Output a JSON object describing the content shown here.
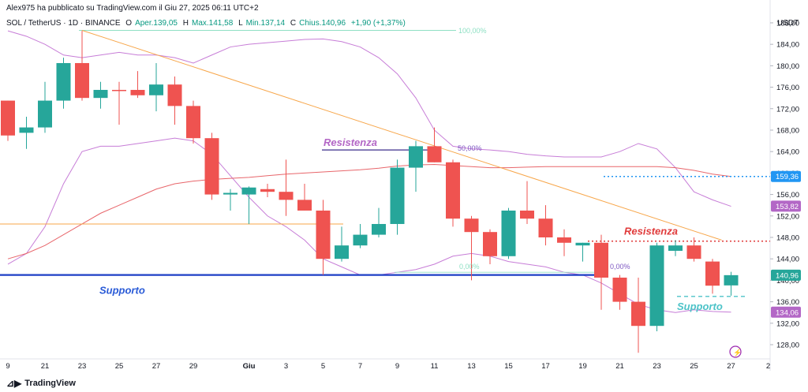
{
  "publisher_line": "Alex975 ha pubblicato su TradingView.com il Giu 27, 2025 06:11 UTC+2",
  "symbol_line": "SOL / TetherUS · 1D · BINANCE",
  "ohlc": {
    "open_label": "O",
    "open_text": "Aper.139,05",
    "high_label": "H",
    "high_text": "Max.141,58",
    "low_label": "L",
    "low_text": "Min.137,14",
    "close_label": "C",
    "close_text": "Chius.140,96",
    "change_text": "+1,90 (+1,37%)"
  },
  "brand": "TradingView",
  "currency": "USDT",
  "colors": {
    "up": "#26a69a",
    "down": "#ef5350",
    "bollinger": "#c77dd7",
    "ma": "#e8666b",
    "trendline": "#f7a64a",
    "support": "#1e3fc5",
    "resistance_dotted": "#e03a3a",
    "fib": "#8fe0c4",
    "blue_dotted": "#2196f3",
    "purple_label": "#b367c6",
    "teal_label": "#4dc3c8"
  },
  "chart_data": {
    "type": "candlestick",
    "y_ticks": [
      128,
      132,
      136,
      140,
      144,
      148,
      152,
      156,
      160,
      164,
      168,
      172,
      176,
      180,
      184,
      188
    ],
    "ylim": [
      125.5,
      190.2
    ],
    "x_tick_labels": [
      {
        "i": 0,
        "label": "9"
      },
      {
        "i": 2,
        "label": "21"
      },
      {
        "i": 4,
        "label": "23"
      },
      {
        "i": 6,
        "label": "25"
      },
      {
        "i": 8,
        "label": "27"
      },
      {
        "i": 10,
        "label": "29"
      },
      {
        "i": 13,
        "label": "Giu"
      },
      {
        "i": 15,
        "label": "3"
      },
      {
        "i": 17,
        "label": "5"
      },
      {
        "i": 19,
        "label": "7"
      },
      {
        "i": 21,
        "label": "9"
      },
      {
        "i": 23,
        "label": "11"
      },
      {
        "i": 25,
        "label": "13"
      },
      {
        "i": 27,
        "label": "15"
      },
      {
        "i": 29,
        "label": "17"
      },
      {
        "i": 31,
        "label": "19"
      },
      {
        "i": 33,
        "label": "21"
      },
      {
        "i": 35,
        "label": "23"
      },
      {
        "i": 37,
        "label": "25"
      },
      {
        "i": 39,
        "label": "27"
      },
      {
        "i": 41,
        "label": "2"
      }
    ],
    "candles": [
      {
        "o": 173.5,
        "h": 173.5,
        "l": 166.0,
        "c": 167.0
      },
      {
        "o": 167.5,
        "h": 170.5,
        "l": 164.5,
        "c": 168.5
      },
      {
        "o": 168.5,
        "h": 177.0,
        "l": 167.5,
        "c": 173.5
      },
      {
        "o": 173.5,
        "h": 181.5,
        "l": 172.0,
        "c": 180.5
      },
      {
        "o": 180.5,
        "h": 186.5,
        "l": 173.5,
        "c": 174.0
      },
      {
        "o": 174.0,
        "h": 177.0,
        "l": 172.0,
        "c": 175.5
      },
      {
        "o": 175.5,
        "h": 177.0,
        "l": 169.0,
        "c": 175.3
      },
      {
        "o": 175.5,
        "h": 179.0,
        "l": 174.0,
        "c": 174.5
      },
      {
        "o": 174.5,
        "h": 180.5,
        "l": 171.5,
        "c": 176.5
      },
      {
        "o": 176.5,
        "h": 178.0,
        "l": 169.0,
        "c": 172.5
      },
      {
        "o": 172.5,
        "h": 173.5,
        "l": 165.5,
        "c": 166.5
      },
      {
        "o": 166.5,
        "h": 167.5,
        "l": 155.0,
        "c": 156.0
      },
      {
        "o": 156.0,
        "h": 157.0,
        "l": 153.0,
        "c": 156.3
      },
      {
        "o": 156.0,
        "h": 157.5,
        "l": 150.5,
        "c": 157.3
      },
      {
        "o": 157.0,
        "h": 158.0,
        "l": 155.5,
        "c": 156.5
      },
      {
        "o": 156.5,
        "h": 162.5,
        "l": 152.0,
        "c": 155.0
      },
      {
        "o": 155.0,
        "h": 158.0,
        "l": 153.0,
        "c": 153.0
      },
      {
        "o": 153.0,
        "h": 155.0,
        "l": 141.0,
        "c": 144.0
      },
      {
        "o": 144.0,
        "h": 150.0,
        "l": 143.5,
        "c": 146.5
      },
      {
        "o": 146.5,
        "h": 150.5,
        "l": 146.0,
        "c": 148.5
      },
      {
        "o": 148.5,
        "h": 153.5,
        "l": 148.0,
        "c": 150.5
      },
      {
        "o": 150.5,
        "h": 162.5,
        "l": 148.5,
        "c": 161.0
      },
      {
        "o": 161.0,
        "h": 166.0,
        "l": 156.5,
        "c": 165.0
      },
      {
        "o": 165.0,
        "h": 168.5,
        "l": 162.0,
        "c": 162.0
      },
      {
        "o": 162.0,
        "h": 162.5,
        "l": 150.0,
        "c": 151.5
      },
      {
        "o": 151.5,
        "h": 152.0,
        "l": 140.0,
        "c": 149.0
      },
      {
        "o": 149.0,
        "h": 149.5,
        "l": 143.0,
        "c": 144.5
      },
      {
        "o": 144.5,
        "h": 153.5,
        "l": 144.0,
        "c": 153.0
      },
      {
        "o": 153.0,
        "h": 158.5,
        "l": 150.5,
        "c": 151.5
      },
      {
        "o": 151.5,
        "h": 154.0,
        "l": 146.5,
        "c": 148.0
      },
      {
        "o": 148.0,
        "h": 149.5,
        "l": 144.5,
        "c": 147.0
      },
      {
        "o": 146.5,
        "h": 147.0,
        "l": 143.5,
        "c": 147.0
      },
      {
        "o": 147.0,
        "h": 148.5,
        "l": 134.5,
        "c": 140.5
      },
      {
        "o": 140.5,
        "h": 141.0,
        "l": 134.5,
        "c": 136.0
      },
      {
        "o": 136.0,
        "h": 140.5,
        "l": 126.5,
        "c": 131.5
      },
      {
        "o": 131.5,
        "h": 147.0,
        "l": 130.5,
        "c": 146.5
      },
      {
        "o": 145.5,
        "h": 147.5,
        "l": 144.5,
        "c": 146.5
      },
      {
        "o": 146.5,
        "h": 148.0,
        "l": 143.5,
        "c": 144.0
      },
      {
        "o": 143.5,
        "h": 144.0,
        "l": 137.5,
        "c": 139.0
      },
      {
        "o": 139.05,
        "h": 141.58,
        "l": 137.14,
        "c": 140.96
      }
    ],
    "bollinger_upper": [
      186.5,
      185.5,
      184.0,
      182.0,
      181.5,
      182.0,
      182.5,
      182.0,
      182.0,
      181.5,
      180.5,
      182.0,
      183.5,
      184.0,
      184.3,
      184.6,
      184.9,
      185.0,
      184.5,
      183.5,
      181.5,
      178.5,
      174.0,
      168.0,
      165.0,
      164.5,
      164.3,
      164.0,
      163.5,
      163.2,
      163.0,
      163.0,
      163.0,
      164.0,
      165.5,
      164.5,
      161.0,
      156.5,
      155.0,
      153.8
    ],
    "bollinger_lower": [
      143.0,
      145.0,
      150.0,
      158.0,
      164.0,
      165.0,
      165.0,
      165.5,
      166.0,
      166.5,
      166.0,
      163.5,
      159.5,
      155.5,
      152.0,
      150.0,
      147.5,
      144.0,
      142.5,
      141.0,
      141.0,
      141.5,
      142.0,
      143.0,
      144.5,
      145.0,
      144.5,
      143.5,
      143.0,
      142.5,
      141.5,
      141.0,
      139.5,
      137.5,
      135.5,
      134.5,
      134.0,
      134.5,
      134.2,
      134.06
    ],
    "moving_average": [
      144.0,
      145.0,
      146.5,
      148.5,
      150.5,
      152.5,
      154.0,
      155.5,
      157.0,
      158.0,
      158.5,
      158.8,
      159.0,
      159.2,
      159.5,
      159.8,
      160.0,
      160.2,
      160.4,
      160.6,
      160.9,
      161.3,
      161.5,
      161.6,
      161.4,
      161.2,
      161.0,
      161.0,
      161.1,
      161.2,
      161.2,
      161.2,
      161.2,
      161.2,
      161.2,
      161.2,
      161.0,
      160.5,
      159.8,
      159.36
    ],
    "annotations": {
      "resistance_1": "Resistenza",
      "resistance_2": "Resistenza",
      "support_1": "Supporto",
      "support_2": "Supporto",
      "fib_100": "100,00%",
      "fib_50": "50,00%",
      "fib_0a": "0,00%",
      "fib_0b": "0,00%"
    },
    "price_labels": [
      {
        "value": 159.36,
        "text": "159,36",
        "color": "#2196f3"
      },
      {
        "value": 153.82,
        "text": "153,82",
        "color": "#b367c6"
      },
      {
        "value": 140.96,
        "text": "140,96",
        "color": "#26a69a"
      },
      {
        "value": 134.06,
        "text": "134,06",
        "color": "#b367c6"
      }
    ],
    "levels": {
      "support": 141.0,
      "orange_horizontal": 150.5,
      "resistance_dotted": 147.3,
      "blue_dotted": 159.36,
      "teal_dashed": 137.0,
      "resistenza_top": 164.3,
      "fib_100": 186.6
    },
    "trendline": {
      "from": {
        "i": 4,
        "v": 186.6
      },
      "to": {
        "i": 39,
        "v": 147.5
      }
    }
  }
}
